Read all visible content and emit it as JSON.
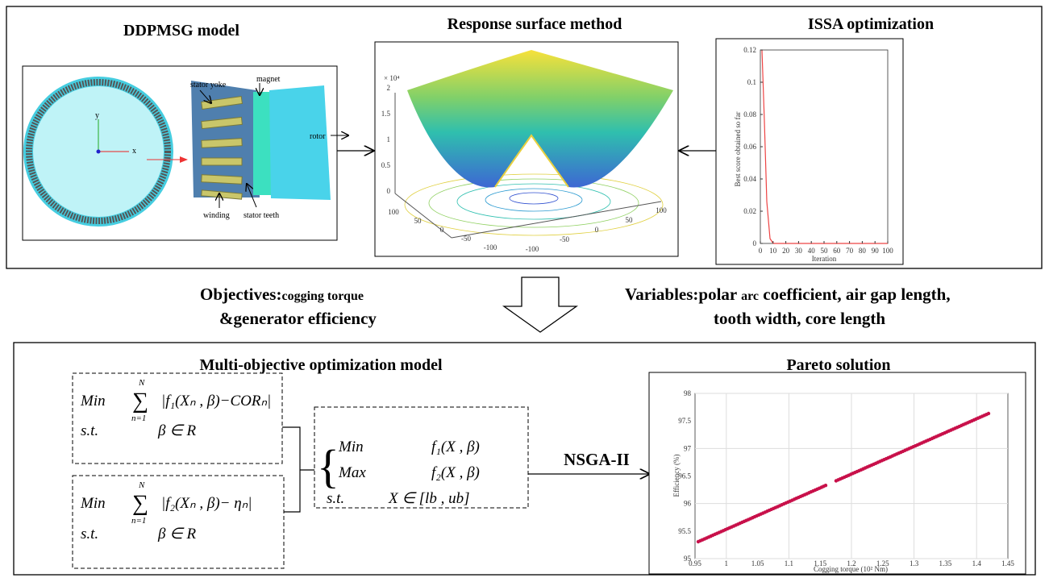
{
  "top": {
    "titles": [
      "DDPMSG model",
      "Response surface method",
      "ISSA optimization"
    ]
  },
  "motor": {
    "labels": [
      "stator yoke",
      "magnet",
      "rotor",
      "winding",
      "stator teeth"
    ],
    "axes": [
      "y",
      "x"
    ]
  },
  "surface": {
    "exponent": "× 10⁴",
    "z_ticks": [
      2,
      1.5,
      1,
      0.5,
      0
    ],
    "left_ticks": [
      100,
      50,
      0,
      -50,
      -100
    ],
    "right_ticks": [
      -100,
      -50,
      0,
      50,
      100
    ]
  },
  "convergence": {
    "y_label": "Best score obtained so far",
    "x_label": "Iteration",
    "yticks": [
      0,
      0.02,
      0.04,
      0.06,
      0.08,
      0.1,
      0.12
    ],
    "xticks": [
      0,
      10,
      20,
      30,
      40,
      50,
      60,
      70,
      80,
      90,
      100
    ]
  },
  "objectives": {
    "head": "Objectives:",
    "small": "cogging torque",
    "line2": "&generator efficiency"
  },
  "variables": {
    "head": "Variables:polar ",
    "small": "arc",
    "rest": " coefficient, air gap length,",
    "line2": "tooth width,  core length"
  },
  "bottom": {
    "titles": [
      "Multi-objective optimization model",
      "Pareto solution"
    ],
    "algorithm": "NSGA-II"
  },
  "formulas": {
    "f1": {
      "min": "Min",
      "sum": "∑",
      "upper": "N",
      "lower": "n=1",
      "expr": "|f₁(Xₙ , β)−CORₙ|",
      "st": "s.t.",
      "cons": "β ∈ R"
    },
    "f2": {
      "min": "Min",
      "sum": "∑",
      "upper": "N",
      "lower": "n=1",
      "expr": "|f₂(Xₙ , β)− ηₙ|",
      "st": "s.t.",
      "cons": "β ∈ R"
    },
    "system": {
      "brace": "{",
      "min": "Min",
      "f1": "f₁(X , β)",
      "max": "Max",
      "f2": "f₂(X , β)",
      "st": "s.t.",
      "cons": "X ∈ [lb , ub]"
    }
  },
  "pareto": {
    "y_label": "Efficiency (%)",
    "x_label": "Cogging torque (10² Nm)",
    "yticks": [
      95,
      95.5,
      96,
      96.5,
      97,
      97.5,
      98
    ],
    "xticks": [
      0.95,
      1,
      1.05,
      1.1,
      1.15,
      1.2,
      1.25,
      1.3,
      1.35,
      1.4,
      1.45
    ]
  }
}
